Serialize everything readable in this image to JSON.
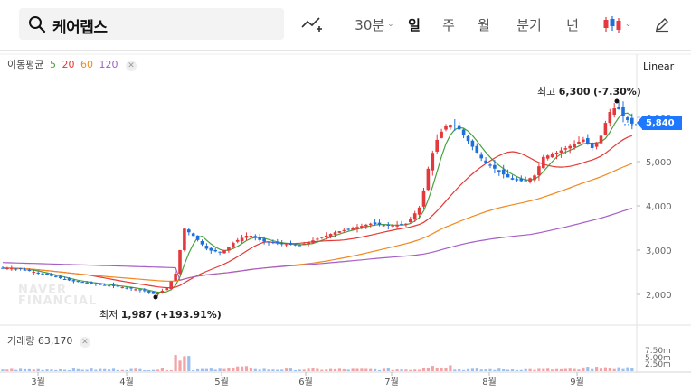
{
  "search": {
    "value": "케어랩스"
  },
  "toolbar": {
    "periods": [
      {
        "label": "30분",
        "active": false
      },
      {
        "label": "일",
        "active": true
      },
      {
        "label": "주",
        "active": false
      },
      {
        "label": "월",
        "active": false
      },
      {
        "label": "분기",
        "active": false
      },
      {
        "label": "년",
        "active": false
      }
    ]
  },
  "indicators": {
    "ma_title": "이동평균",
    "ma_periods": [
      {
        "label": "5",
        "color": "#48a23f"
      },
      {
        "label": "20",
        "color": "#e53935"
      },
      {
        "label": "60",
        "color": "#f18a1e"
      },
      {
        "label": "120",
        "color": "#a65ec6"
      }
    ],
    "volume_title": "거래량",
    "volume_value": "63,170"
  },
  "scale": {
    "label": "Linear"
  },
  "annotations": {
    "high": {
      "prefix": "최고",
      "value": "6,300",
      "change": "(-7.30%)"
    },
    "low": {
      "prefix": "최저",
      "value": "1,987",
      "change": "(+193.91%)"
    },
    "current_price": "5,840"
  },
  "watermark": [
    "NAVER",
    "FINANCIAL"
  ],
  "colors": {
    "up": "#e3393c",
    "down": "#1e6fd9",
    "accent": "#1d78ff"
  },
  "chart_data": {
    "type": "candlestick",
    "y_ticks": [
      "2,000",
      "3,000",
      "4,000",
      "5,000",
      "6,000"
    ],
    "y_values": [
      2000,
      3000,
      4000,
      5000,
      6000
    ],
    "ylim": [
      1600,
      6600
    ],
    "volume_ticks": [
      "2.50m",
      "5.00m",
      "7.50m"
    ],
    "x_labels": [
      "3월",
      "4월",
      "5월",
      "6월",
      "7월",
      "8월",
      "9월"
    ],
    "high": 6300,
    "low": 1987,
    "last": 5840
  }
}
